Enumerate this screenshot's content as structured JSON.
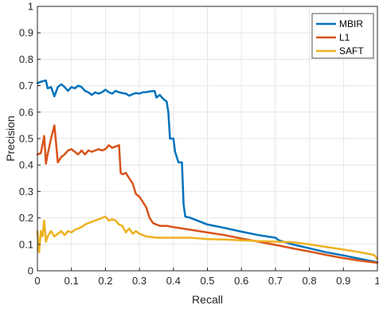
{
  "chart_data": {
    "type": "line",
    "xlabel": "Recall",
    "ylabel": "Precision",
    "xlim": [
      0,
      1
    ],
    "ylim": [
      0,
      1
    ],
    "xticks": [
      "0",
      "0.1",
      "0.2",
      "0.3",
      "0.4",
      "0.5",
      "0.6",
      "0.7",
      "0.8",
      "0.9",
      "1"
    ],
    "yticks": [
      "0",
      "0.1",
      "0.2",
      "0.3",
      "0.4",
      "0.5",
      "0.6",
      "0.7",
      "0.8",
      "0.9",
      "1"
    ],
    "grid": true,
    "legend_position": "top-right",
    "series": [
      {
        "name": "MBIR",
        "color": "#0072BD",
        "points": [
          [
            0,
            0.71
          ],
          [
            0.01,
            0.715
          ],
          [
            0.02,
            0.718
          ],
          [
            0.025,
            0.72
          ],
          [
            0.03,
            0.69
          ],
          [
            0.04,
            0.695
          ],
          [
            0.05,
            0.66
          ],
          [
            0.06,
            0.695
          ],
          [
            0.07,
            0.705
          ],
          [
            0.08,
            0.695
          ],
          [
            0.09,
            0.68
          ],
          [
            0.1,
            0.695
          ],
          [
            0.11,
            0.69
          ],
          [
            0.12,
            0.7
          ],
          [
            0.13,
            0.695
          ],
          [
            0.14,
            0.68
          ],
          [
            0.15,
            0.675
          ],
          [
            0.16,
            0.665
          ],
          [
            0.17,
            0.675
          ],
          [
            0.18,
            0.67
          ],
          [
            0.19,
            0.675
          ],
          [
            0.2,
            0.685
          ],
          [
            0.21,
            0.675
          ],
          [
            0.22,
            0.67
          ],
          [
            0.23,
            0.68
          ],
          [
            0.24,
            0.675
          ],
          [
            0.25,
            0.672
          ],
          [
            0.26,
            0.67
          ],
          [
            0.27,
            0.662
          ],
          [
            0.28,
            0.668
          ],
          [
            0.29,
            0.672
          ],
          [
            0.3,
            0.67
          ],
          [
            0.31,
            0.675
          ],
          [
            0.32,
            0.676
          ],
          [
            0.33,
            0.678
          ],
          [
            0.345,
            0.68
          ],
          [
            0.35,
            0.655
          ],
          [
            0.36,
            0.665
          ],
          [
            0.37,
            0.65
          ],
          [
            0.38,
            0.64
          ],
          [
            0.385,
            0.6
          ],
          [
            0.39,
            0.5
          ],
          [
            0.4,
            0.5
          ],
          [
            0.405,
            0.45
          ],
          [
            0.415,
            0.41
          ],
          [
            0.425,
            0.41
          ],
          [
            0.43,
            0.25
          ],
          [
            0.435,
            0.205
          ],
          [
            0.45,
            0.2
          ],
          [
            0.47,
            0.19
          ],
          [
            0.5,
            0.175
          ],
          [
            0.55,
            0.162
          ],
          [
            0.6,
            0.148
          ],
          [
            0.65,
            0.135
          ],
          [
            0.7,
            0.125
          ],
          [
            0.71,
            0.115
          ],
          [
            0.75,
            0.1
          ],
          [
            0.8,
            0.085
          ],
          [
            0.85,
            0.07
          ],
          [
            0.9,
            0.058
          ],
          [
            0.95,
            0.045
          ],
          [
            1,
            0.032
          ]
        ]
      },
      {
        "name": "L1",
        "color": "#D95319",
        "points": [
          [
            0,
            0.44
          ],
          [
            0.01,
            0.445
          ],
          [
            0.02,
            0.51
          ],
          [
            0.025,
            0.405
          ],
          [
            0.03,
            0.44
          ],
          [
            0.04,
            0.5
          ],
          [
            0.05,
            0.55
          ],
          [
            0.055,
            0.48
          ],
          [
            0.06,
            0.41
          ],
          [
            0.07,
            0.43
          ],
          [
            0.08,
            0.44
          ],
          [
            0.09,
            0.455
          ],
          [
            0.1,
            0.46
          ],
          [
            0.11,
            0.45
          ],
          [
            0.12,
            0.44
          ],
          [
            0.13,
            0.455
          ],
          [
            0.14,
            0.44
          ],
          [
            0.15,
            0.455
          ],
          [
            0.16,
            0.45
          ],
          [
            0.17,
            0.455
          ],
          [
            0.18,
            0.46
          ],
          [
            0.19,
            0.455
          ],
          [
            0.2,
            0.46
          ],
          [
            0.21,
            0.475
          ],
          [
            0.22,
            0.465
          ],
          [
            0.23,
            0.47
          ],
          [
            0.24,
            0.475
          ],
          [
            0.245,
            0.37
          ],
          [
            0.25,
            0.365
          ],
          [
            0.26,
            0.37
          ],
          [
            0.27,
            0.35
          ],
          [
            0.28,
            0.33
          ],
          [
            0.29,
            0.29
          ],
          [
            0.3,
            0.28
          ],
          [
            0.31,
            0.26
          ],
          [
            0.32,
            0.24
          ],
          [
            0.33,
            0.2
          ],
          [
            0.34,
            0.18
          ],
          [
            0.36,
            0.17
          ],
          [
            0.38,
            0.17
          ],
          [
            0.4,
            0.165
          ],
          [
            0.45,
            0.155
          ],
          [
            0.5,
            0.145
          ],
          [
            0.55,
            0.135
          ],
          [
            0.6,
            0.122
          ],
          [
            0.65,
            0.11
          ],
          [
            0.7,
            0.098
          ],
          [
            0.75,
            0.085
          ],
          [
            0.8,
            0.073
          ],
          [
            0.85,
            0.06
          ],
          [
            0.9,
            0.048
          ],
          [
            0.95,
            0.038
          ],
          [
            1,
            0.03
          ]
        ]
      },
      {
        "name": "SAFT",
        "color": "#EDB120",
        "points": [
          [
            0,
            0.15
          ],
          [
            0.005,
            0.07
          ],
          [
            0.01,
            0.15
          ],
          [
            0.015,
            0.13
          ],
          [
            0.02,
            0.19
          ],
          [
            0.025,
            0.11
          ],
          [
            0.03,
            0.13
          ],
          [
            0.04,
            0.15
          ],
          [
            0.05,
            0.13
          ],
          [
            0.06,
            0.14
          ],
          [
            0.07,
            0.15
          ],
          [
            0.08,
            0.135
          ],
          [
            0.09,
            0.15
          ],
          [
            0.1,
            0.145
          ],
          [
            0.11,
            0.155
          ],
          [
            0.12,
            0.16
          ],
          [
            0.13,
            0.165
          ],
          [
            0.14,
            0.175
          ],
          [
            0.15,
            0.18
          ],
          [
            0.16,
            0.185
          ],
          [
            0.17,
            0.19
          ],
          [
            0.18,
            0.195
          ],
          [
            0.19,
            0.2
          ],
          [
            0.2,
            0.205
          ],
          [
            0.21,
            0.19
          ],
          [
            0.22,
            0.195
          ],
          [
            0.23,
            0.19
          ],
          [
            0.24,
            0.175
          ],
          [
            0.25,
            0.17
          ],
          [
            0.26,
            0.145
          ],
          [
            0.27,
            0.16
          ],
          [
            0.28,
            0.14
          ],
          [
            0.29,
            0.15
          ],
          [
            0.3,
            0.14
          ],
          [
            0.31,
            0.135
          ],
          [
            0.32,
            0.13
          ],
          [
            0.35,
            0.125
          ],
          [
            0.4,
            0.125
          ],
          [
            0.45,
            0.125
          ],
          [
            0.5,
            0.12
          ],
          [
            0.55,
            0.118
          ],
          [
            0.6,
            0.115
          ],
          [
            0.65,
            0.112
          ],
          [
            0.7,
            0.11
          ],
          [
            0.75,
            0.108
          ],
          [
            0.8,
            0.1
          ],
          [
            0.85,
            0.09
          ],
          [
            0.9,
            0.08
          ],
          [
            0.95,
            0.07
          ],
          [
            0.99,
            0.06
          ],
          [
            1,
            0.045
          ]
        ]
      }
    ]
  }
}
